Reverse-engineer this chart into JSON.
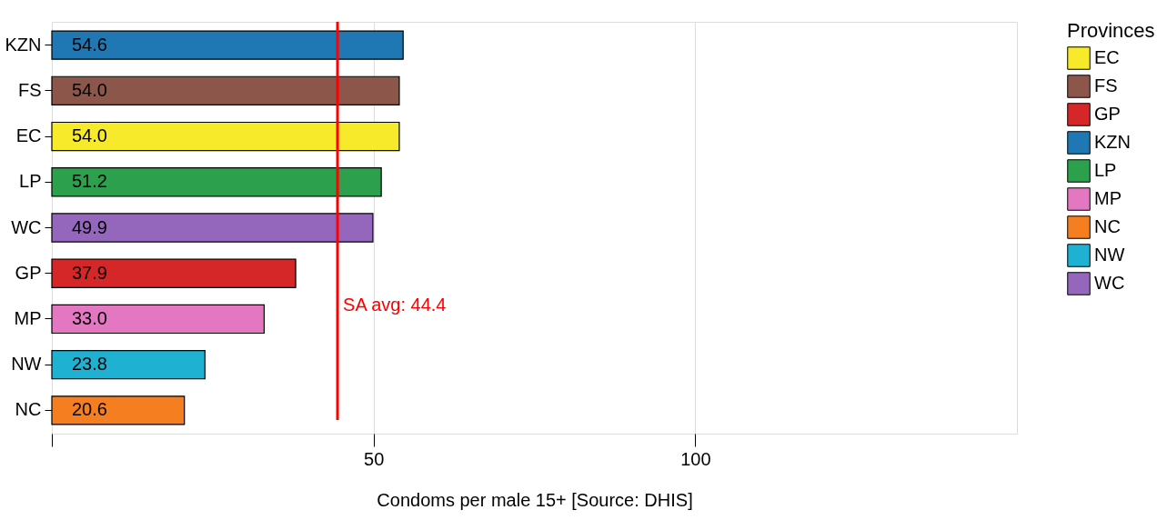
{
  "chart_data": {
    "type": "bar",
    "orientation": "horizontal",
    "xlabel": "Condoms per male 15+ [Source: DHIS]",
    "legend_title": "Provinces",
    "legend": "right",
    "categories": [
      "KZN",
      "FS",
      "EC",
      "LP",
      "WC",
      "GP",
      "MP",
      "NW",
      "NC"
    ],
    "series": [
      {
        "name": "EC",
        "color": "#f7ea2a",
        "values": [
          null,
          null,
          54.0,
          null,
          null,
          null,
          null,
          null,
          null
        ],
        "value_labels": [
          null,
          null,
          "54.0",
          null,
          null,
          null,
          null,
          null,
          null
        ]
      },
      {
        "name": "FS",
        "color": "#8c564b",
        "values": [
          null,
          54.0,
          null,
          null,
          null,
          null,
          null,
          null,
          null
        ],
        "value_labels": [
          null,
          "54.0",
          null,
          null,
          null,
          null,
          null,
          null,
          null
        ]
      },
      {
        "name": "GP",
        "color": "#d62728",
        "values": [
          null,
          null,
          null,
          null,
          null,
          37.9,
          null,
          null,
          null
        ],
        "value_labels": [
          null,
          null,
          null,
          null,
          null,
          "37.9",
          null,
          null,
          null
        ]
      },
      {
        "name": "KZN",
        "color": "#1f77b4",
        "values": [
          54.6,
          null,
          null,
          null,
          null,
          null,
          null,
          null,
          null
        ],
        "value_labels": [
          "54.6",
          null,
          null,
          null,
          null,
          null,
          null,
          null,
          null
        ]
      },
      {
        "name": "LP",
        "color": "#2ca04c",
        "values": [
          null,
          null,
          null,
          51.2,
          null,
          null,
          null,
          null,
          null
        ],
        "value_labels": [
          null,
          null,
          null,
          "51.2",
          null,
          null,
          null,
          null,
          null
        ]
      },
      {
        "name": "MP",
        "color": "#e377c2",
        "values": [
          null,
          null,
          null,
          null,
          null,
          null,
          33.0,
          null,
          null
        ],
        "value_labels": [
          null,
          null,
          null,
          null,
          null,
          null,
          "33.0",
          null,
          null
        ]
      },
      {
        "name": "NC",
        "color": "#f57f20",
        "values": [
          null,
          null,
          null,
          null,
          null,
          null,
          null,
          null,
          20.6
        ],
        "value_labels": [
          null,
          null,
          null,
          null,
          null,
          null,
          null,
          null,
          "20.6"
        ]
      },
      {
        "name": "NW",
        "color": "#1fb1d2",
        "values": [
          null,
          null,
          null,
          null,
          null,
          null,
          null,
          23.8,
          null
        ],
        "value_labels": [
          null,
          null,
          null,
          null,
          null,
          null,
          null,
          "23.8",
          null
        ]
      },
      {
        "name": "WC",
        "color": "#9467bd",
        "values": [
          null,
          null,
          null,
          null,
          49.9,
          null,
          null,
          null,
          null
        ],
        "value_labels": [
          null,
          null,
          null,
          null,
          "49.9",
          null,
          null,
          null,
          null
        ]
      }
    ],
    "xlim": [
      0,
      150
    ],
    "xticks": [
      {
        "value": 0,
        "label": null
      },
      50,
      100
    ],
    "grid": "x",
    "ref_lines": [
      {
        "axis": "x",
        "value": 44.4,
        "label": "SA avg: 44.4",
        "color": "#ff0000"
      }
    ]
  }
}
